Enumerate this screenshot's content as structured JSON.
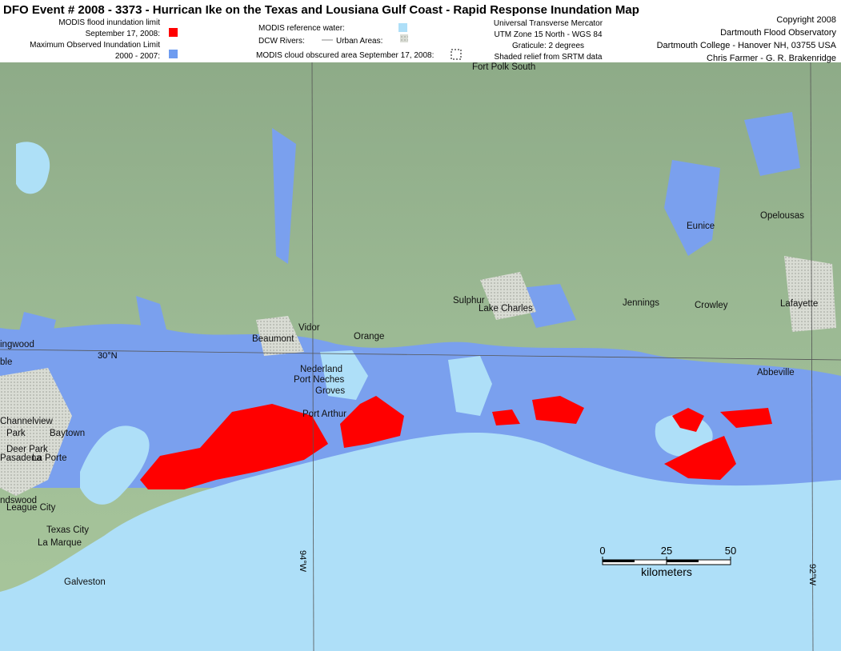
{
  "header": {
    "title": "DFO Event # 2008 - 3373 - Hurrican Ike on the Texas and Lousiana Gulf Coast - Rapid Response Inundation Map",
    "legend": [
      "MODIS flood inundation limit",
      "September 17, 2008:",
      "Maximum Observed Inundation Limit",
      "2000 - 2007:",
      "MODIS reference water:",
      "DCW Rivers:",
      "Urban Areas:",
      "MODIS cloud obscured area September 17, 2008:"
    ],
    "projection": [
      "Universal Transverse Mercator",
      "UTM Zone 15 North - WGS 84",
      "Graticule:  2 degrees",
      "Shaded relief from SRTM data"
    ],
    "credits": [
      "Copyright 2008",
      "Dartmouth Flood Observatory",
      "Dartmouth College - Hanover NH, 03755  USA",
      "Chris Farmer - G. R. Brakenridge"
    ]
  },
  "map": {
    "places": [
      "Fort Polk South",
      "Eunice",
      "Opelousas",
      "Jennings",
      "Crowley",
      "Lafayette",
      "Sulphur",
      "Lake Charles",
      "Vidor",
      "Beaumont",
      "Orange",
      "Abbeville",
      "Nederland",
      "Port Neches",
      "Groves",
      "Port Arthur",
      "Baytown",
      "League City",
      "Texas City",
      "La Marque",
      "Galveston",
      "ingwood",
      "ble",
      "Channelview",
      "Park",
      "Deer Park",
      "Pasadena",
      "La Porte",
      "ndswood"
    ],
    "graticule": [
      "30°N",
      "94°W",
      "92°W"
    ],
    "scale": {
      "ticks": [
        0,
        25,
        50
      ],
      "unit": "kilometers"
    }
  }
}
